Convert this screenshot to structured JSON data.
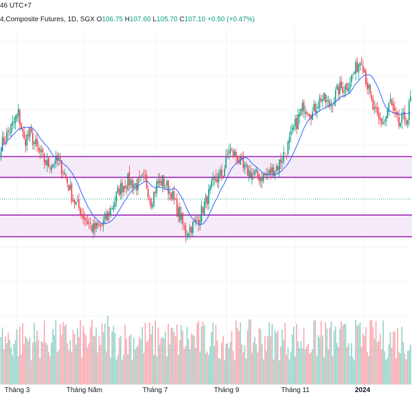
{
  "header": {
    "clock_fragment": "46 UTC+7",
    "symbol_title": "4,Composite Futures, 1D, SGX",
    "o_label": "O",
    "o_value": "106.75",
    "h_label": "H",
    "h_value": "107.60",
    "l_label": "L",
    "l_value": "105.70",
    "c_label": "C",
    "c_value": "107.10",
    "change": "+0.50 (+0.47%)"
  },
  "colors": {
    "up": "#089981",
    "down": "#f23645",
    "ma": "#2962ff",
    "zone_line": "#9c27b0",
    "zone_fill": "#f3e5f5",
    "dotted": "#089981",
    "grid": "#f0f3fa"
  },
  "chart_data": {
    "type": "candlestick",
    "timeframe": "1D",
    "x_ticks": [
      "Tháng 3",
      "Tháng Năm",
      "Tháng 7",
      "Tháng 9",
      "Tháng 11",
      "2024"
    ],
    "bold_tick": "2024",
    "price_range_visible": [
      84,
      114
    ],
    "last_close": 107.1,
    "support_resistance_zones": [
      {
        "low": 97.0,
        "high": 99.6
      },
      {
        "low": 89.6,
        "high": 92.3
      }
    ],
    "reference_level": 94.3,
    "anchors": [
      [
        0,
        101.0
      ],
      [
        8,
        103.5
      ],
      [
        12,
        105.0
      ],
      [
        16,
        101.5
      ],
      [
        20,
        102.5
      ],
      [
        26,
        100.2
      ],
      [
        32,
        98.6
      ],
      [
        40,
        99.0
      ],
      [
        44,
        97.5
      ],
      [
        50,
        94.2
      ],
      [
        58,
        92.0
      ],
      [
        64,
        90.5
      ],
      [
        70,
        91.0
      ],
      [
        76,
        93.0
      ],
      [
        82,
        95.5
      ],
      [
        88,
        96.6
      ],
      [
        94,
        96.0
      ],
      [
        100,
        96.8
      ],
      [
        104,
        94.0
      ],
      [
        108,
        96.0
      ],
      [
        112,
        96.6
      ],
      [
        118,
        95.0
      ],
      [
        122,
        93.0
      ],
      [
        128,
        90.2
      ],
      [
        136,
        91.5
      ],
      [
        142,
        94.0
      ],
      [
        148,
        96.5
      ],
      [
        154,
        97.5
      ],
      [
        158,
        100.5
      ],
      [
        164,
        99.5
      ],
      [
        168,
        98.0
      ],
      [
        174,
        97.5
      ],
      [
        180,
        97.0
      ],
      [
        186,
        97.5
      ],
      [
        192,
        98.5
      ],
      [
        198,
        100.5
      ],
      [
        204,
        103.5
      ],
      [
        210,
        106.0
      ],
      [
        216,
        105.0
      ],
      [
        222,
        107.0
      ],
      [
        228,
        106.0
      ],
      [
        234,
        108.0
      ],
      [
        240,
        108.5
      ],
      [
        246,
        110.5
      ],
      [
        250,
        112.0
      ],
      [
        254,
        108.5
      ],
      [
        258,
        105.5
      ],
      [
        262,
        104.0
      ],
      [
        266,
        104.0
      ],
      [
        270,
        106.5
      ],
      [
        272,
        105.0
      ],
      [
        276,
        103.5
      ],
      [
        278,
        104.2
      ],
      [
        282,
        104.5
      ],
      [
        284,
        107.1
      ]
    ]
  }
}
